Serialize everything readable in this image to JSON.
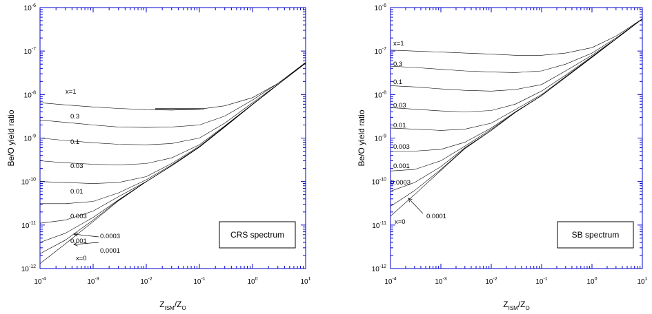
{
  "chart_data": [
    {
      "type": "line",
      "scale": "log-log",
      "xlabel_main": "Z",
      "xlabel_sub1": "ISM",
      "xlabel_mid": "/Z",
      "xlabel_sub2": "O",
      "ylabel": "Be/O yield ratio",
      "xlim": [
        0.0001,
        10
      ],
      "ylim": [
        1e-12,
        1e-06
      ],
      "xticks": [
        {
          "base": "10",
          "exp": "-4",
          "value": 0.0001
        },
        {
          "base": "10",
          "exp": "-3",
          "value": 0.001
        },
        {
          "base": "10",
          "exp": "-2",
          "value": 0.01
        },
        {
          "base": "10",
          "exp": "-1",
          "value": 0.1
        },
        {
          "base": "10",
          "exp": "0",
          "value": 1
        },
        {
          "base": "10",
          "exp": "1",
          "value": 10
        }
      ],
      "yticks": [
        {
          "base": "10",
          "exp": "-12",
          "value": 1e-12
        },
        {
          "base": "10",
          "exp": "-11",
          "value": 1e-11
        },
        {
          "base": "10",
          "exp": "-10",
          "value": 1e-10
        },
        {
          "base": "10",
          "exp": "-9",
          "value": 1e-09
        },
        {
          "base": "10",
          "exp": "-8",
          "value": 1e-08
        },
        {
          "base": "10",
          "exp": "-7",
          "value": 1e-07
        },
        {
          "base": "10",
          "exp": "-6",
          "value": 1e-06
        }
      ],
      "legend_text": "CRS spectrum",
      "legend_position": "bottom-right",
      "x": [
        0.0001,
        0.0003,
        0.001,
        0.003,
        0.01,
        0.03,
        0.1,
        0.3,
        1,
        3,
        10
      ],
      "series": [
        {
          "label": "x=1",
          "values": [
            6.5e-09,
            5.8e-09,
            5.2e-09,
            4.8e-09,
            4.5e-09,
            4.4e-09,
            4.6e-09,
            5.5e-09,
            8.5e-09,
            1.8e-08,
            5.5e-08
          ]
        },
        {
          "label": "0.3",
          "values": [
            2.6e-09,
            2.3e-09,
            2e-09,
            1.8e-09,
            1.75e-09,
            1.8e-09,
            2e-09,
            3.2e-09,
            7.5e-09,
            1.8e-08,
            5.4e-08
          ]
        },
        {
          "label": "0.1",
          "values": [
            1e-09,
            8.8e-10,
            7.8e-10,
            7.2e-10,
            7e-10,
            7.5e-10,
            1e-09,
            2.2e-09,
            6.5e-09,
            1.7e-08,
            5.3e-08
          ]
        },
        {
          "label": "0.03",
          "values": [
            3e-10,
            2.7e-10,
            2.5e-10,
            2.4e-10,
            2.6e-10,
            3.5e-10,
            7e-10,
            1.9e-09,
            6e-09,
            1.7e-08,
            5.3e-08
          ]
        },
        {
          "label": "0.01",
          "values": [
            1e-10,
            9.5e-11,
            9e-11,
            9.5e-11,
            1.3e-10,
            2.6e-10,
            6.5e-10,
            1.85e-09,
            6e-09,
            1.7e-08,
            5.3e-08
          ]
        },
        {
          "label": "0.003",
          "values": [
            3.1e-11,
            3.1e-11,
            3.5e-11,
            5.5e-11,
            1.1e-10,
            2.4e-10,
            6.3e-10,
            1.8e-09,
            5.9e-09,
            1.7e-08,
            5.3e-08
          ]
        },
        {
          "label": "0.001",
          "values": [
            1.1e-11,
            1.3e-11,
            2.1e-11,
            4.5e-11,
            1e-10,
            2.3e-10,
            6.2e-10,
            1.8e-09,
            5.9e-09,
            1.7e-08,
            5.3e-08
          ]
        },
        {
          "label": "0.0003",
          "values": [
            4e-12,
            6.5e-12,
            1.5e-11,
            3.8e-11,
            1e-10,
            2.3e-10,
            6.2e-10,
            1.8e-09,
            5.9e-09,
            1.7e-08,
            5.3e-08
          ]
        },
        {
          "label": "0.0001",
          "values": [
            2.2e-12,
            4.5e-12,
            1.3e-11,
            3.7e-11,
            1e-10,
            2.3e-10,
            6.2e-10,
            1.8e-09,
            5.9e-09,
            1.7e-08,
            5.3e-08
          ]
        },
        {
          "label": "x=0",
          "values": [
            1.3e-12,
            3.7e-12,
            1.2e-11,
            3.6e-11,
            1e-10,
            2.3e-10,
            6.2e-10,
            1.8e-09,
            5.9e-09,
            1.7e-08,
            5.3e-08
          ]
        }
      ]
    },
    {
      "type": "line",
      "scale": "log-log",
      "xlabel_main": "Z",
      "xlabel_sub1": "ISM",
      "xlabel_mid": "/Z",
      "xlabel_sub2": "O",
      "ylabel": "Be/O yield ratio",
      "xlim": [
        0.0001,
        10
      ],
      "ylim": [
        1e-12,
        1e-06
      ],
      "xticks": [
        {
          "base": "10",
          "exp": "-4",
          "value": 0.0001
        },
        {
          "base": "10",
          "exp": "-3",
          "value": 0.001
        },
        {
          "base": "10",
          "exp": "-2",
          "value": 0.01
        },
        {
          "base": "10",
          "exp": "-1",
          "value": 0.1
        },
        {
          "base": "10",
          "exp": "0",
          "value": 1
        },
        {
          "base": "10",
          "exp": "1",
          "value": 10
        }
      ],
      "yticks": [
        {
          "base": "10",
          "exp": "-12",
          "value": 1e-12
        },
        {
          "base": "10",
          "exp": "-11",
          "value": 1e-11
        },
        {
          "base": "10",
          "exp": "-10",
          "value": 1e-10
        },
        {
          "base": "10",
          "exp": "-9",
          "value": 1e-09
        },
        {
          "base": "10",
          "exp": "-8",
          "value": 1e-08
        },
        {
          "base": "10",
          "exp": "-7",
          "value": 1e-07
        },
        {
          "base": "10",
          "exp": "-6",
          "value": 1e-06
        }
      ],
      "legend_text": "SB spectrum",
      "legend_position": "bottom-right",
      "x": [
        0.0001,
        0.0003,
        0.001,
        0.003,
        0.01,
        0.03,
        0.1,
        0.3,
        1,
        3,
        10
      ],
      "series": [
        {
          "label": "x=1",
          "values": [
            1.05e-07,
            1e-07,
            9.5e-08,
            9e-08,
            8.5e-08,
            8e-08,
            8e-08,
            9e-08,
            1.2e-07,
            2.2e-07,
            5.5e-07
          ]
        },
        {
          "label": "0.3",
          "values": [
            4.5e-08,
            4.2e-08,
            3.8e-08,
            3.5e-08,
            3.3e-08,
            3.2e-08,
            3.5e-08,
            5e-08,
            9e-08,
            2e-07,
            5.5e-07
          ]
        },
        {
          "label": "0.1",
          "values": [
            1.6e-08,
            1.5e-08,
            1.35e-08,
            1.25e-08,
            1.2e-08,
            1.3e-08,
            1.7e-08,
            3.5e-08,
            8e-08,
            1.9e-07,
            5.5e-07
          ]
        },
        {
          "label": "0.03",
          "values": [
            5e-09,
            4.6e-09,
            4.2e-09,
            4e-09,
            4.3e-09,
            6e-09,
            1.2e-08,
            2.8e-08,
            7.5e-08,
            1.9e-07,
            5.5e-07
          ]
        },
        {
          "label": "0.01",
          "values": [
            1.7e-09,
            1.6e-09,
            1.5e-09,
            1.6e-09,
            2.2e-09,
            4.5e-09,
            1e-08,
            2.6e-08,
            7.3e-08,
            1.9e-07,
            5.5e-07
          ]
        },
        {
          "label": "0.003",
          "values": [
            5e-10,
            5e-10,
            5.5e-10,
            8e-10,
            1.7e-09,
            4e-09,
            9.5e-09,
            2.5e-08,
            7.2e-08,
            1.9e-07,
            5.5e-07
          ]
        },
        {
          "label": "0.001",
          "values": [
            1.75e-10,
            1.9e-10,
            3e-10,
            6.5e-10,
            1.6e-09,
            3.9e-09,
            9.5e-09,
            2.5e-08,
            7.2e-08,
            1.9e-07,
            5.5e-07
          ]
        },
        {
          "label": "0.0003",
          "values": [
            6e-11,
            9.5e-11,
            2.2e-10,
            6e-10,
            1.5e-09,
            3.9e-09,
            9.5e-09,
            2.5e-08,
            7.2e-08,
            1.9e-07,
            5.5e-07
          ]
        },
        {
          "label": "0.0001",
          "values": [
            2.7e-11,
            6.2e-11,
            1.9e-10,
            5.8e-10,
            1.5e-09,
            3.9e-09,
            9.5e-09,
            2.5e-08,
            7.2e-08,
            1.9e-07,
            5.5e-07
          ]
        },
        {
          "label": "x=0",
          "values": [
            1.6e-11,
            5e-11,
            1.8e-10,
            5.7e-10,
            1.5e-09,
            3.9e-09,
            9.5e-09,
            2.5e-08,
            7.2e-08,
            1.9e-07,
            5.5e-07
          ]
        }
      ]
    }
  ]
}
